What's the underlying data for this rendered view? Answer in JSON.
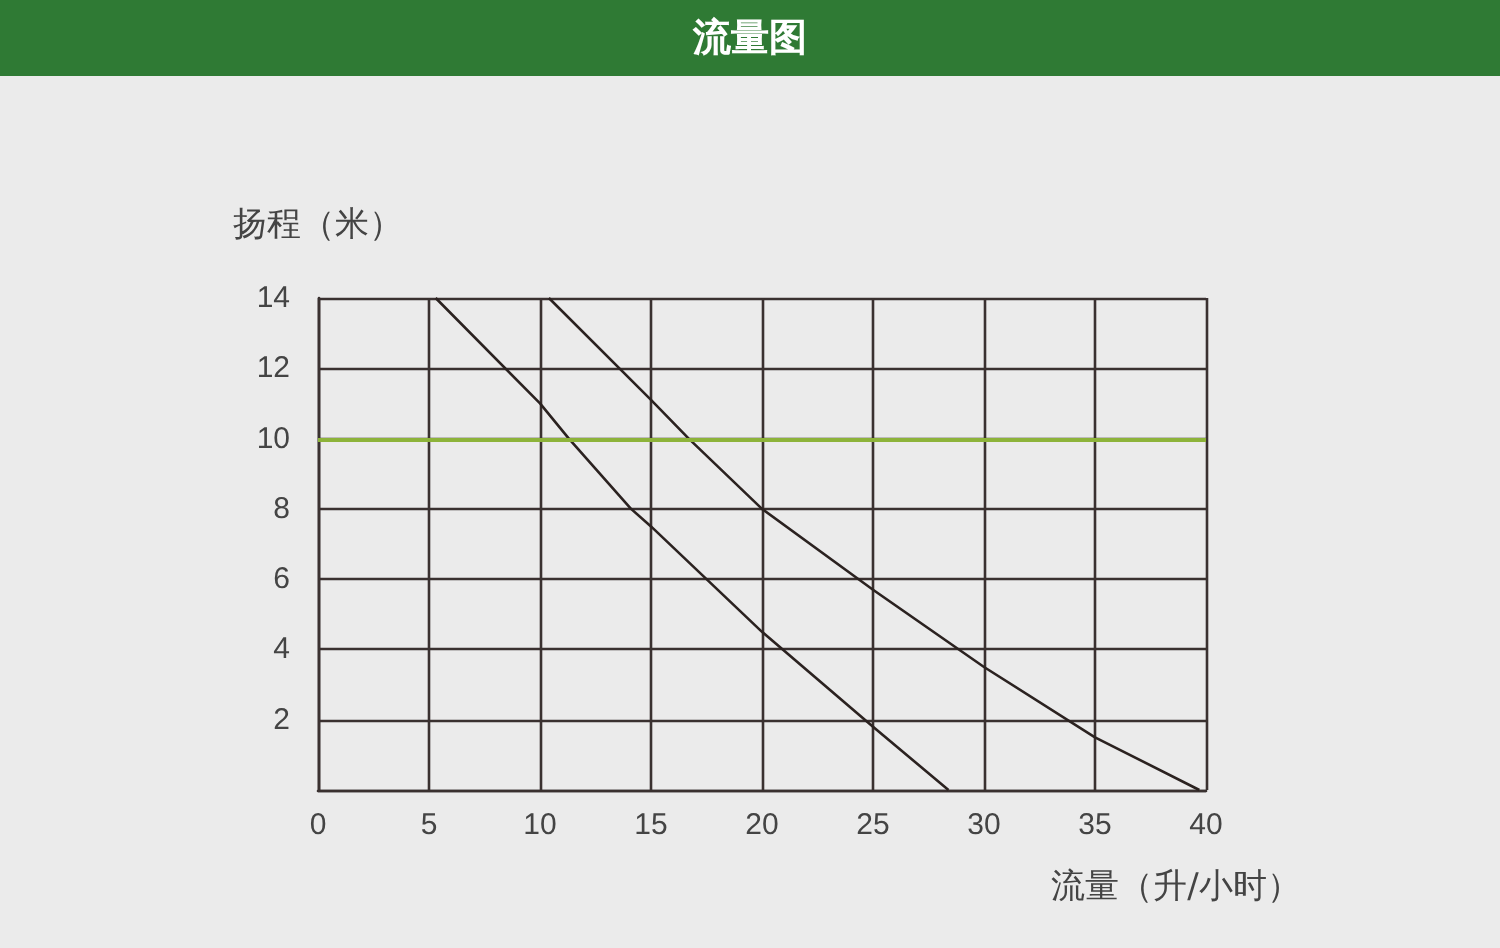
{
  "chart_data": {
    "type": "line",
    "title": "流量图",
    "xlabel": "流量（升/小时）",
    "ylabel": "扬程（米）",
    "xlim": [
      0,
      40
    ],
    "xticks": [
      0,
      5,
      10,
      15,
      20,
      25,
      30,
      35,
      40
    ],
    "ylim": [
      0,
      14
    ],
    "yticks": [
      {
        "value": 0,
        "label": null
      },
      2,
      4,
      6,
      8,
      10,
      12,
      14
    ],
    "grid": true,
    "marker": "none",
    "line_style": "solid",
    "series": [
      {
        "color": "#2b2220",
        "x": [
          5.3,
          10,
          11.3,
          14.1,
          15,
          20,
          25,
          28.4
        ],
        "values": [
          14,
          11,
          10,
          8,
          7.5,
          4.5,
          1.8,
          0
        ]
      },
      {
        "color": "#2b2220",
        "x": [
          10.4,
          15,
          16.7,
          20,
          25,
          30,
          35,
          39.7
        ],
        "values": [
          14,
          11.1,
          10,
          8,
          5.7,
          3.5,
          1.5,
          0
        ]
      }
    ],
    "ref_lines": [
      {
        "axis": "y",
        "value": 10,
        "color": "#8db33a"
      }
    ]
  }
}
